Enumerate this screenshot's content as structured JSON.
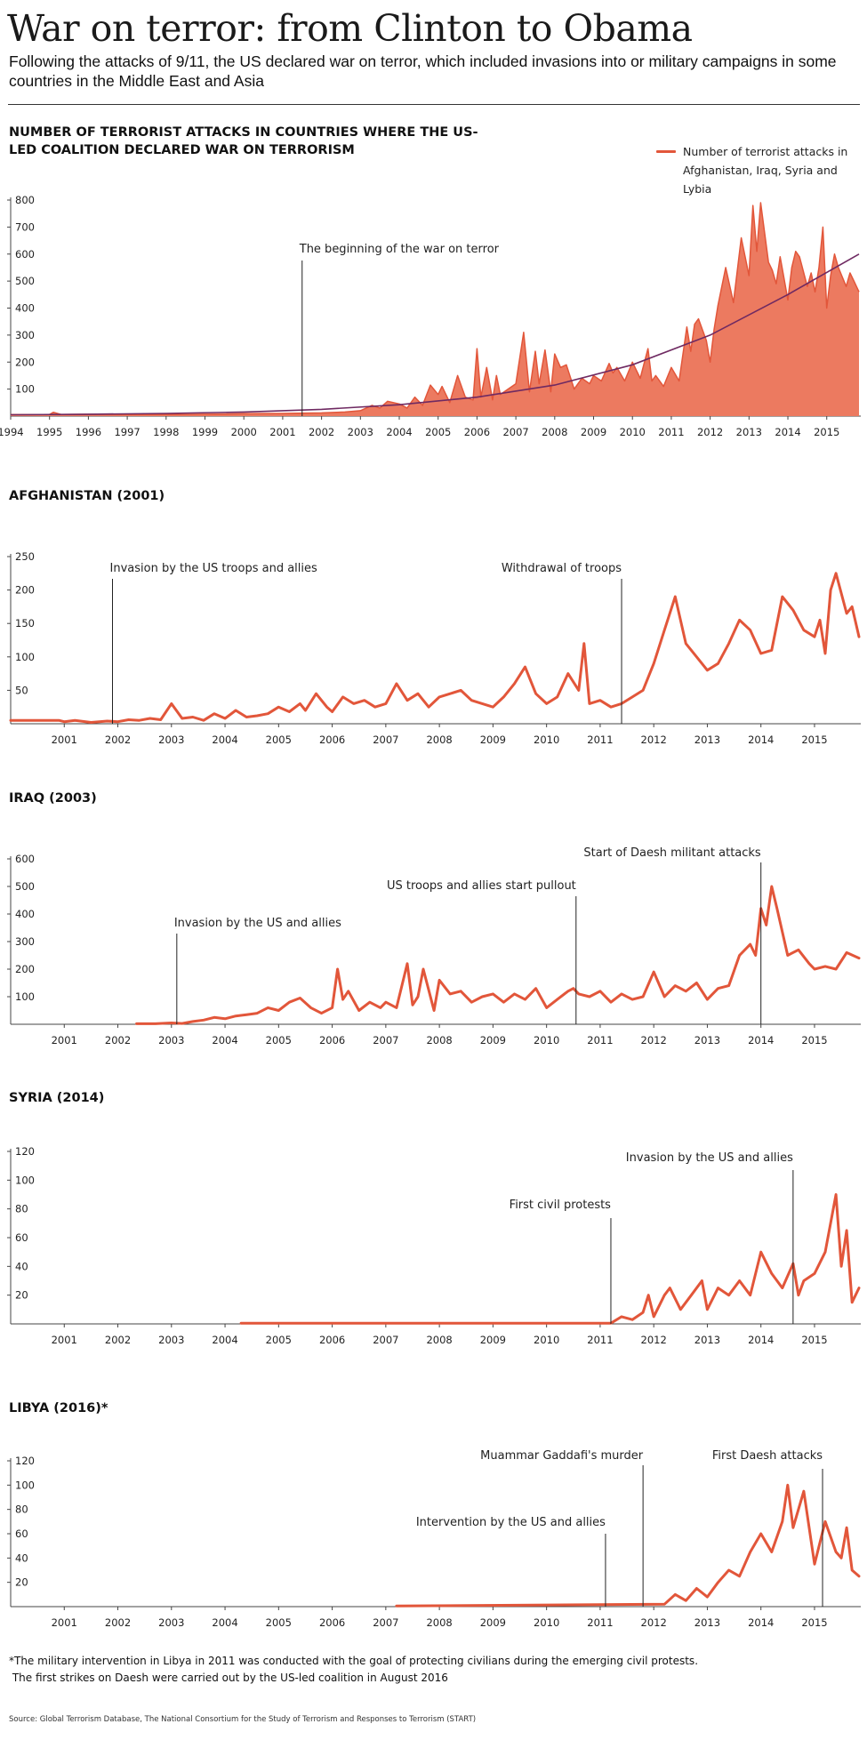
{
  "header": {
    "title": "War on terror: from Clinton to Obama",
    "subtitle": "Following the attacks of 9/11, the US declared war on terror, which included invasions into or military campaigns in some countries in the Middle East and Asia"
  },
  "colors": {
    "series": "#e2563a",
    "area": "#ec7a60",
    "trend": "#6f2a62",
    "axis": "#444444",
    "annotation": "#222222"
  },
  "chart_data": [
    {
      "type": "area",
      "title": "NUMBER OF TERRORIST ATTACKS IN COUNTRIES WHERE THE US-LED COALITION DECLARED WAR ON TERRORISM",
      "legend": {
        "label": "Number of terrorist attacks in Afghanistan, Iraq, Syria and Lybia",
        "position": "top-right"
      },
      "xlim": [
        1994,
        2015.83
      ],
      "ylim": [
        0,
        800
      ],
      "x_ticks": [
        1994,
        1995,
        1996,
        1997,
        1998,
        1999,
        2000,
        2001,
        2002,
        2003,
        2004,
        2005,
        2006,
        2007,
        2008,
        2009,
        2010,
        2011,
        2012,
        2013,
        2014,
        2015
      ],
      "y_ticks": [
        100,
        200,
        300,
        400,
        500,
        600,
        700,
        800
      ],
      "series": [
        {
          "name": "Number of terrorist attacks in Afghanistan, Iraq, Syria and Lybia",
          "x": [
            1994.0,
            1995.0,
            1995.1,
            1995.3,
            1996.0,
            1997.0,
            1998.0,
            1999.0,
            2000.0,
            2001.0,
            2002.0,
            2002.6,
            2003.0,
            2003.3,
            2003.5,
            2003.7,
            2004.0,
            2004.2,
            2004.4,
            2004.6,
            2004.8,
            2005.0,
            2005.1,
            2005.3,
            2005.5,
            2005.7,
            2005.9,
            2006.0,
            2006.1,
            2006.25,
            2006.4,
            2006.5,
            2006.6,
            2006.8,
            2007.0,
            2007.2,
            2007.35,
            2007.5,
            2007.6,
            2007.75,
            2007.9,
            2008.0,
            2008.15,
            2008.3,
            2008.5,
            2008.7,
            2008.9,
            2009.0,
            2009.2,
            2009.4,
            2009.5,
            2009.6,
            2009.8,
            2010.0,
            2010.2,
            2010.4,
            2010.5,
            2010.6,
            2010.8,
            2011.0,
            2011.2,
            2011.4,
            2011.5,
            2011.6,
            2011.7,
            2011.9,
            2012.0,
            2012.1,
            2012.2,
            2012.4,
            2012.6,
            2012.8,
            2013.0,
            2013.1,
            2013.2,
            2013.3,
            2013.5,
            2013.6,
            2013.7,
            2013.8,
            2013.9,
            2014.0,
            2014.1,
            2014.2,
            2014.3,
            2014.5,
            2014.6,
            2014.7,
            2014.8,
            2014.9,
            2015.0,
            2015.1,
            2015.2,
            2015.3,
            2015.5,
            2015.6,
            2015.7,
            2015.83
          ],
          "values": [
            6,
            6,
            14,
            6,
            7,
            6,
            6,
            7,
            9,
            10,
            12,
            15,
            20,
            40,
            30,
            55,
            45,
            30,
            70,
            40,
            115,
            80,
            110,
            50,
            150,
            70,
            60,
            250,
            70,
            180,
            60,
            150,
            80,
            100,
            120,
            310,
            90,
            240,
            120,
            245,
            90,
            230,
            180,
            190,
            100,
            140,
            120,
            150,
            130,
            195,
            160,
            180,
            130,
            200,
            140,
            250,
            130,
            150,
            110,
            180,
            130,
            330,
            240,
            340,
            360,
            280,
            200,
            320,
            410,
            550,
            420,
            660,
            520,
            780,
            610,
            790,
            570,
            540,
            490,
            590,
            510,
            430,
            550,
            610,
            590,
            480,
            530,
            460,
            550,
            700,
            400,
            520,
            600,
            550,
            480,
            530,
            500,
            460
          ]
        },
        {
          "name": "",
          "type": "line",
          "x": [
            1994,
            1996,
            1998,
            2000,
            2002,
            2004,
            2006,
            2008,
            2010,
            2012,
            2014,
            2015.83
          ],
          "values": [
            5,
            7,
            10,
            15,
            25,
            42,
            70,
            115,
            190,
            300,
            450,
            600
          ]
        }
      ],
      "annotations": [
        {
          "x": 2001.5,
          "label": "The beginning of the war on terror"
        }
      ]
    },
    {
      "type": "line",
      "title": "AFGHANISTAN (2001)",
      "xlim": [
        2000.0,
        2015.83
      ],
      "ylim": [
        0,
        250
      ],
      "x_ticks": [
        2001,
        2002,
        2003,
        2004,
        2005,
        2006,
        2007,
        2008,
        2009,
        2010,
        2011,
        2012,
        2013,
        2014,
        2015
      ],
      "y_ticks": [
        50,
        100,
        150,
        200,
        250
      ],
      "series": [
        {
          "name": "",
          "x": [
            2000.0,
            2000.9,
            2001.0,
            2001.2,
            2001.5,
            2001.8,
            2002.0,
            2002.2,
            2002.4,
            2002.6,
            2002.8,
            2003.0,
            2003.2,
            2003.4,
            2003.6,
            2003.8,
            2004.0,
            2004.2,
            2004.4,
            2004.6,
            2004.8,
            2005.0,
            2005.2,
            2005.4,
            2005.5,
            2005.7,
            2005.9,
            2006.0,
            2006.2,
            2006.4,
            2006.6,
            2006.8,
            2007.0,
            2007.2,
            2007.4,
            2007.6,
            2007.8,
            2008.0,
            2008.2,
            2008.4,
            2008.6,
            2008.8,
            2009.0,
            2009.2,
            2009.4,
            2009.6,
            2009.8,
            2010.0,
            2010.2,
            2010.4,
            2010.6,
            2010.7,
            2010.8,
            2011.0,
            2011.2,
            2011.4,
            2011.6,
            2011.8,
            2012.0,
            2012.2,
            2012.4,
            2012.6,
            2012.8,
            2013.0,
            2013.2,
            2013.4,
            2013.6,
            2013.8,
            2014.0,
            2014.2,
            2014.4,
            2014.6,
            2014.8,
            2015.0,
            2015.1,
            2015.2,
            2015.3,
            2015.4,
            2015.6,
            2015.7,
            2015.83
          ],
          "values": [
            5,
            5,
            3,
            5,
            2,
            4,
            3,
            6,
            5,
            8,
            6,
            30,
            8,
            10,
            5,
            15,
            8,
            20,
            10,
            12,
            15,
            25,
            18,
            30,
            20,
            45,
            25,
            18,
            40,
            30,
            35,
            25,
            30,
            60,
            35,
            45,
            25,
            40,
            45,
            50,
            35,
            30,
            25,
            40,
            60,
            85,
            45,
            30,
            40,
            75,
            50,
            120,
            30,
            35,
            25,
            30,
            40,
            50,
            90,
            140,
            190,
            120,
            100,
            80,
            90,
            120,
            155,
            140,
            105,
            110,
            190,
            170,
            140,
            130,
            155,
            105,
            200,
            225,
            165,
            175,
            130
          ]
        }
      ],
      "annotations": [
        {
          "x": 2001.9,
          "label": "Invasion by the US troops and allies"
        },
        {
          "x": 2011.4,
          "label": "Withdrawal of troops"
        }
      ]
    },
    {
      "type": "line",
      "title": "IRAQ (2003)",
      "xlim": [
        2000.0,
        2015.83
      ],
      "ylim": [
        0,
        600
      ],
      "x_ticks": [
        2001,
        2002,
        2003,
        2004,
        2005,
        2006,
        2007,
        2008,
        2009,
        2010,
        2011,
        2012,
        2013,
        2014,
        2015
      ],
      "y_ticks": [
        100,
        200,
        300,
        400,
        500,
        600
      ],
      "series": [
        {
          "name": "",
          "x": [
            2002.35,
            2002.7,
            2003.0,
            2003.2,
            2003.4,
            2003.6,
            2003.8,
            2004.0,
            2004.2,
            2004.4,
            2004.6,
            2004.8,
            2005.0,
            2005.2,
            2005.4,
            2005.6,
            2005.8,
            2006.0,
            2006.1,
            2006.2,
            2006.3,
            2006.5,
            2006.7,
            2006.9,
            2007.0,
            2007.2,
            2007.4,
            2007.5,
            2007.6,
            2007.7,
            2007.9,
            2008.0,
            2008.2,
            2008.4,
            2008.6,
            2008.8,
            2009.0,
            2009.2,
            2009.4,
            2009.6,
            2009.8,
            2010.0,
            2010.2,
            2010.4,
            2010.5,
            2010.6,
            2010.8,
            2011.0,
            2011.2,
            2011.4,
            2011.6,
            2011.8,
            2012.0,
            2012.2,
            2012.4,
            2012.6,
            2012.8,
            2013.0,
            2013.2,
            2013.4,
            2013.6,
            2013.8,
            2013.9,
            2014.0,
            2014.1,
            2014.2,
            2014.3,
            2014.5,
            2014.7,
            2014.9,
            2015.0,
            2015.2,
            2015.4,
            2015.6,
            2015.83
          ],
          "values": [
            2,
            2,
            5,
            3,
            10,
            15,
            25,
            20,
            30,
            35,
            40,
            60,
            50,
            80,
            95,
            60,
            40,
            60,
            200,
            90,
            120,
            50,
            80,
            60,
            80,
            60,
            220,
            70,
            100,
            200,
            50,
            160,
            110,
            120,
            80,
            100,
            110,
            80,
            110,
            90,
            130,
            60,
            90,
            120,
            130,
            110,
            100,
            120,
            80,
            110,
            90,
            100,
            190,
            100,
            140,
            120,
            150,
            90,
            130,
            140,
            250,
            290,
            250,
            420,
            360,
            500,
            420,
            250,
            270,
            220,
            200,
            210,
            200,
            260,
            240
          ]
        }
      ],
      "annotations": [
        {
          "x": 2003.1,
          "label": "Invasion by the US and allies"
        },
        {
          "x": 2010.55,
          "label": "US troops and allies start pullout"
        },
        {
          "x": 2014.0,
          "label": "Start of Daesh militant attacks"
        }
      ]
    },
    {
      "type": "line",
      "title": "SYRIA (2014)",
      "xlim": [
        2000.0,
        2015.83
      ],
      "ylim": [
        0,
        120
      ],
      "x_ticks": [
        2001,
        2002,
        2003,
        2004,
        2005,
        2006,
        2007,
        2008,
        2009,
        2010,
        2011,
        2012,
        2013,
        2014,
        2015
      ],
      "y_ticks": [
        20,
        40,
        60,
        80,
        100,
        120
      ],
      "series": [
        {
          "name": "",
          "x": [
            2004.3,
            2011.2,
            2011.4,
            2011.6,
            2011.8,
            2011.9,
            2012.0,
            2012.2,
            2012.3,
            2012.5,
            2012.7,
            2012.9,
            2013.0,
            2013.2,
            2013.4,
            2013.6,
            2013.8,
            2014.0,
            2014.2,
            2014.4,
            2014.6,
            2014.7,
            2014.8,
            2015.0,
            2015.2,
            2015.4,
            2015.5,
            2015.6,
            2015.7,
            2015.83
          ],
          "values": [
            0.5,
            0.5,
            5,
            3,
            8,
            20,
            5,
            20,
            25,
            10,
            20,
            30,
            10,
            25,
            20,
            30,
            20,
            50,
            35,
            25,
            42,
            20,
            30,
            35,
            50,
            90,
            40,
            65,
            15,
            25
          ]
        }
      ],
      "annotations": [
        {
          "x": 2011.2,
          "label": "First civil protests"
        },
        {
          "x": 2014.6,
          "label": "Invasion by the US and allies"
        }
      ]
    },
    {
      "type": "line",
      "title": "LIBYA (2016)*",
      "xlim": [
        2000.0,
        2015.83
      ],
      "ylim": [
        0,
        120
      ],
      "x_ticks": [
        2001,
        2002,
        2003,
        2004,
        2005,
        2006,
        2007,
        2008,
        2009,
        2010,
        2011,
        2012,
        2013,
        2014,
        2015
      ],
      "y_ticks": [
        20,
        40,
        60,
        80,
        100,
        120
      ],
      "series": [
        {
          "name": "",
          "x": [
            2007.2,
            2012.2,
            2012.4,
            2012.6,
            2012.8,
            2013.0,
            2013.2,
            2013.4,
            2013.6,
            2013.8,
            2014.0,
            2014.2,
            2014.4,
            2014.5,
            2014.6,
            2014.8,
            2015.0,
            2015.2,
            2015.4,
            2015.5,
            2015.6,
            2015.7,
            2015.83
          ],
          "values": [
            0.5,
            2,
            10,
            5,
            15,
            8,
            20,
            30,
            25,
            45,
            60,
            45,
            70,
            100,
            65,
            95,
            35,
            70,
            45,
            40,
            65,
            30,
            25
          ]
        }
      ],
      "annotations": [
        {
          "x": 2011.1,
          "label": "Intervention by the US and allies"
        },
        {
          "x": 2011.8,
          "label": "Muammar Gaddafi's murder"
        },
        {
          "x": 2015.15,
          "label": "First Daesh attacks"
        }
      ]
    }
  ],
  "footnote": {
    "line1": "*The military intervention in Libya in 2011 was conducted with the goal of protecting civilians during the emerging civil protests.",
    "line2": "The first strikes on Daesh were carried out by the US-led coalition in August 2016"
  },
  "source": "Source: Global Terrorism Database, The National Consortium for the Study of Terrorism and Responses to Terrorism (START)"
}
